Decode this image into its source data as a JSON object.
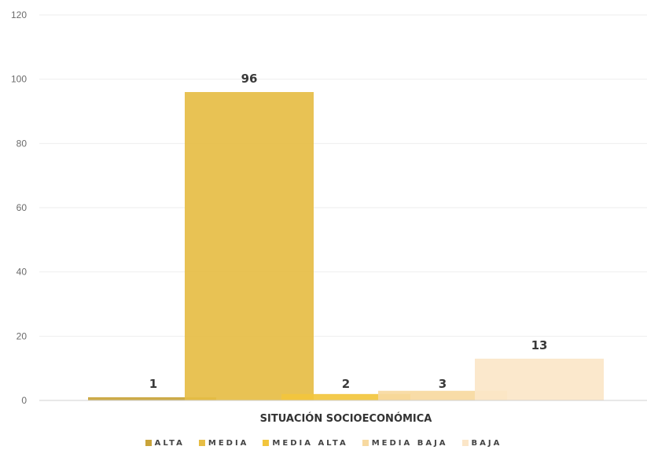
{
  "chart_data": {
    "type": "bar",
    "title": "",
    "xlabel": "SITUACIÓN SOCIOECONÓMICA",
    "ylabel": "",
    "ylim": [
      0,
      120
    ],
    "yticks": [
      0,
      20,
      40,
      60,
      80,
      100,
      120
    ],
    "grid": true,
    "legend_position": "bottom",
    "series": [
      {
        "name": "ALTA",
        "value": 1,
        "color": "#c9a43a"
      },
      {
        "name": "MEDIA",
        "value": 96,
        "color": "#e6bd45"
      },
      {
        "name": "MEDIA ALTA",
        "value": 2,
        "color": "#f2c53d"
      },
      {
        "name": "MEDIA BAJA",
        "value": 3,
        "color": "#f7d9a0"
      },
      {
        "name": "BAJA",
        "value": 13,
        "color": "#fbe6c8"
      }
    ]
  }
}
